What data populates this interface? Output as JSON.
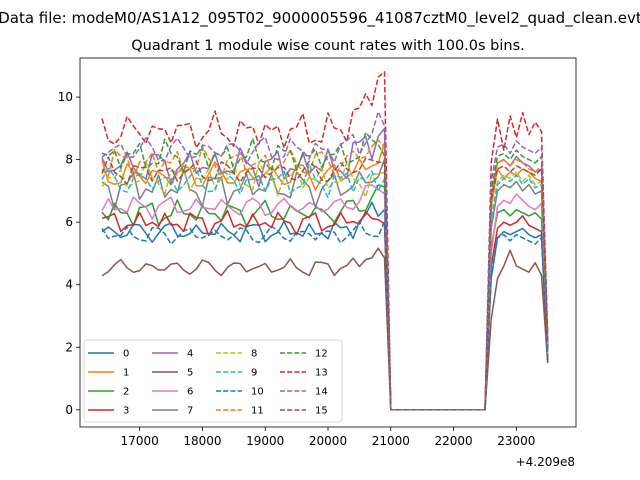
{
  "chart_data": {
    "type": "line",
    "suptitle": "Data file: modeM0/AS1A12_095T02_9000005596_41087cztM0_level2_quad_clean.evt",
    "title": "Quadrant 1 module wise count rates with 100.0s bins.",
    "xlabel": "",
    "ylabel": "",
    "x_offset_label": "+4.209e8",
    "xlim": [
      16050,
      23950
    ],
    "ylim": [
      -0.55,
      11.25
    ],
    "xticks": [
      17000,
      18000,
      19000,
      20000,
      21000,
      22000,
      23000
    ],
    "xtick_labels": [
      "17000",
      "18000",
      "19000",
      "20000",
      "21000",
      "22000",
      "23000"
    ],
    "yticks": [
      0,
      2,
      4,
      6,
      8,
      10
    ],
    "ytick_labels": [
      "0",
      "2",
      "4",
      "6",
      "8",
      "10"
    ],
    "grid": false,
    "legend": {
      "placement": "lower-left",
      "columns": 4
    },
    "segments": {
      "first": {
        "start": 16400,
        "end": 20900,
        "step": 100
      },
      "drop_to": 21000,
      "gap_end": 22500,
      "second": {
        "start": 22600,
        "end": 23500,
        "step": 100
      }
    },
    "series": [
      {
        "name": "0",
        "color": "#1f77b4",
        "dash": "solid",
        "base": 5.7,
        "amp": 0.22,
        "end": 6.5,
        "second": [
          4.2,
          5.5,
          5.7,
          5.6,
          5.7,
          5.8,
          5.6,
          5.5,
          5.6,
          1.5
        ]
      },
      {
        "name": "1",
        "color": "#ff7f0e",
        "dash": "solid",
        "base": 7.5,
        "amp": 0.3,
        "end": 8.1,
        "second": [
          6.5,
          7.7,
          7.4,
          7.6,
          7.5,
          7.7,
          7.6,
          7.4,
          7.3,
          2.0
        ]
      },
      {
        "name": "2",
        "color": "#2ca02c",
        "dash": "solid",
        "base": 6.3,
        "amp": 0.25,
        "end": 7.0,
        "second": [
          5.2,
          6.3,
          6.4,
          6.2,
          6.4,
          6.3,
          6.2,
          6.3,
          6.1,
          1.7
        ]
      },
      {
        "name": "3",
        "color": "#d62728",
        "dash": "solid",
        "base": 6.0,
        "amp": 0.22,
        "end": 6.2,
        "second": [
          4.6,
          5.8,
          6.0,
          5.9,
          6.0,
          6.2,
          5.9,
          5.8,
          5.7,
          1.6
        ]
      },
      {
        "name": "4",
        "color": "#9467bd",
        "dash": "solid",
        "base": 7.8,
        "amp": 0.35,
        "end": 9.0,
        "second": [
          6.8,
          7.9,
          8.0,
          7.8,
          8.1,
          7.9,
          7.8,
          7.6,
          7.7,
          2.1
        ]
      },
      {
        "name": "5",
        "color": "#8c564b",
        "dash": "solid",
        "base": 4.55,
        "amp": 0.18,
        "end": 5.0,
        "second": [
          2.9,
          4.2,
          4.6,
          5.1,
          4.6,
          4.5,
          4.4,
          4.7,
          4.3,
          1.5
        ]
      },
      {
        "name": "6",
        "color": "#e377c2",
        "dash": "solid",
        "base": 6.5,
        "amp": 0.22,
        "end": 7.2,
        "second": [
          5.0,
          6.5,
          6.7,
          6.6,
          6.9,
          6.7,
          6.5,
          6.4,
          6.6,
          1.8
        ]
      },
      {
        "name": "7",
        "color": "#7f7f7f",
        "dash": "solid",
        "base": 7.1,
        "amp": 0.35,
        "end": 7.6,
        "second": [
          5.8,
          7.0,
          7.2,
          7.1,
          7.3,
          7.0,
          7.2,
          6.9,
          7.0,
          1.9
        ]
      },
      {
        "name": "8",
        "color": "#bcbd22",
        "dash": "dash",
        "base": 7.4,
        "amp": 0.3,
        "end": 7.3,
        "second": [
          6.2,
          7.3,
          7.5,
          7.4,
          7.6,
          7.3,
          7.5,
          7.2,
          7.3,
          2.0
        ]
      },
      {
        "name": "9",
        "color": "#17becf",
        "dash": "dash",
        "base": 7.3,
        "amp": 0.3,
        "end": 7.4,
        "second": [
          6.0,
          7.2,
          7.4,
          7.3,
          7.5,
          7.2,
          7.4,
          7.1,
          7.2,
          1.9
        ]
      },
      {
        "name": "10",
        "color": "#1f77b4",
        "dash": "dash",
        "base": 5.6,
        "amp": 0.2,
        "end": 5.8,
        "second": [
          4.3,
          5.5,
          5.6,
          5.4,
          5.6,
          5.5,
          5.4,
          5.3,
          5.5,
          1.5
        ]
      },
      {
        "name": "11",
        "color": "#ff7f0e",
        "dash": "dash",
        "base": 7.9,
        "amp": 0.3,
        "end": 8.5,
        "second": [
          6.6,
          7.9,
          8.0,
          7.8,
          8.0,
          7.9,
          7.7,
          7.6,
          7.8,
          2.1
        ]
      },
      {
        "name": "12",
        "color": "#2ca02c",
        "dash": "dash",
        "base": 8.1,
        "amp": 0.3,
        "end": 8.6,
        "second": [
          7.0,
          8.1,
          8.2,
          8.0,
          8.3,
          8.1,
          8.0,
          7.9,
          8.1,
          2.2
        ]
      },
      {
        "name": "13",
        "color": "#d62728",
        "dash": "dash",
        "base": 8.9,
        "amp": 0.35,
        "end": 10.7,
        "second": [
          7.9,
          9.3,
          8.3,
          9.4,
          8.7,
          9.5,
          8.8,
          9.2,
          8.9,
          2.4
        ]
      },
      {
        "name": "14",
        "color": "#9467bd",
        "dash": "dash",
        "base": 8.3,
        "amp": 0.3,
        "end": 9.1,
        "second": [
          7.3,
          8.4,
          8.5,
          8.2,
          8.6,
          8.4,
          8.3,
          8.2,
          8.4,
          2.2
        ]
      },
      {
        "name": "15",
        "color": "#8c564b",
        "dash": "dash",
        "base": 7.6,
        "amp": 0.25,
        "end": 8.1,
        "second": [
          6.7,
          7.7,
          7.8,
          7.6,
          7.8,
          7.7,
          7.6,
          7.5,
          7.7,
          2.0
        ]
      }
    ]
  }
}
